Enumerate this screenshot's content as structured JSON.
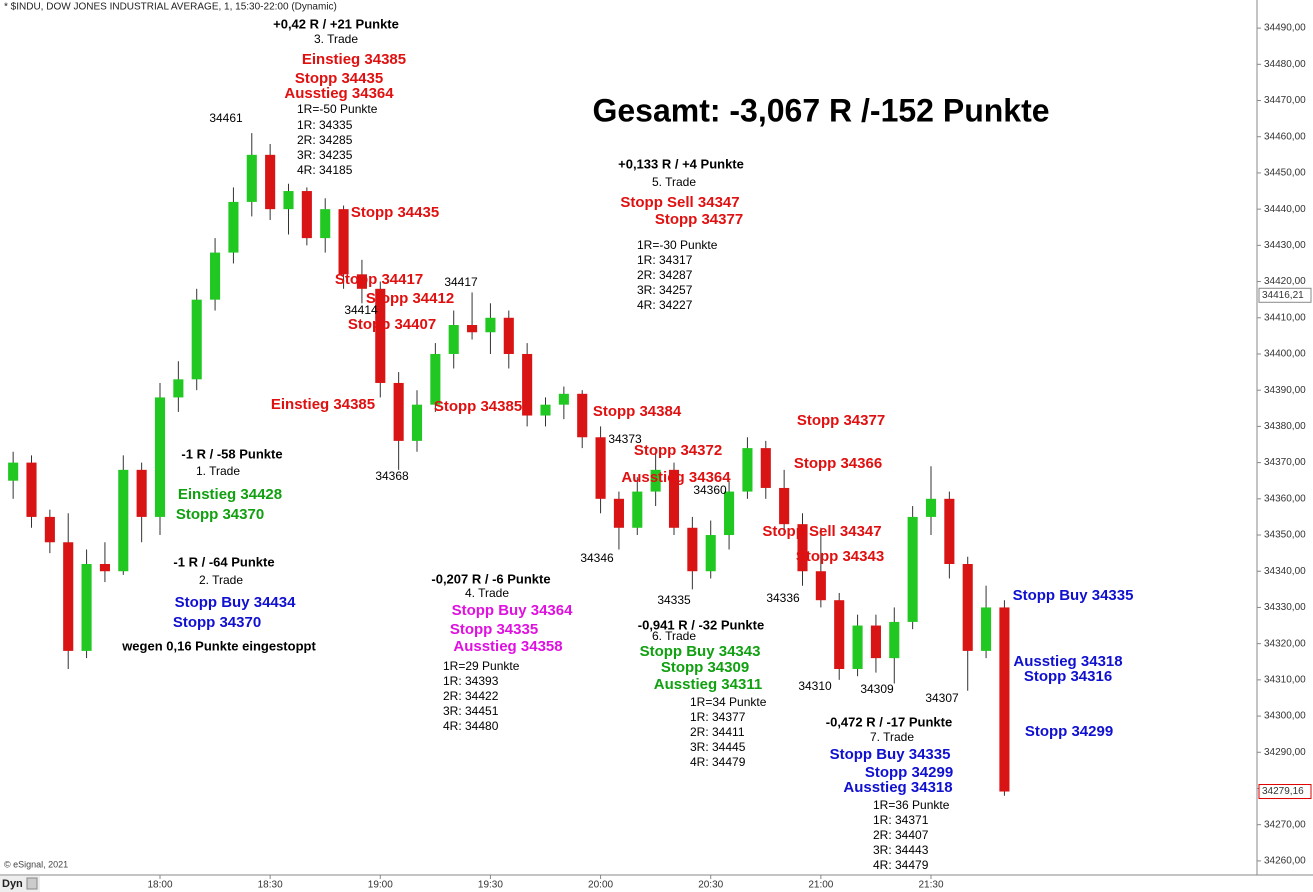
{
  "chart_data": {
    "type": "candlestick",
    "title": "* $INDU, DOW JONES INDUSTRIAL AVERAGE, 1, 15:30-22:00 (Dynamic)",
    "copyright": "© eSignal, 2021",
    "button": "Dyn",
    "up_color": "#22c822",
    "down_color": "#d81414",
    "x": [
      "17:20",
      "17:25",
      "17:30",
      "17:35",
      "17:40",
      "17:45",
      "17:50",
      "17:55",
      "18:00",
      "18:05",
      "18:10",
      "18:15",
      "18:20",
      "18:25",
      "18:30",
      "18:35",
      "18:40",
      "18:45",
      "18:50",
      "18:55",
      "19:00",
      "19:05",
      "19:10",
      "19:15",
      "19:20",
      "19:25",
      "19:30",
      "19:35",
      "19:40",
      "19:45",
      "19:50",
      "19:55",
      "20:00",
      "20:05",
      "20:10",
      "20:15",
      "20:20",
      "20:25",
      "20:30",
      "20:35",
      "20:40",
      "20:45",
      "20:50",
      "20:55",
      "21:00",
      "21:05",
      "21:10",
      "21:15",
      "21:20",
      "21:25",
      "21:30",
      "21:35",
      "21:40",
      "21:45",
      "21:50"
    ],
    "open": [
      34365,
      34370,
      34355,
      34348,
      34318,
      34342,
      34340,
      34368,
      34355,
      34388,
      34393,
      34415,
      34428,
      34442,
      34455,
      34440,
      34445,
      34432,
      34440,
      34422,
      34418,
      34392,
      34376,
      34386,
      34400,
      34408,
      34406,
      34410,
      34400,
      34383,
      34386,
      34389,
      34377,
      34360,
      34352,
      34362,
      34368,
      34352,
      34340,
      34350,
      34362,
      34374,
      34363,
      34353,
      34340,
      34332,
      34313,
      34325,
      34316,
      34326,
      34355,
      34360,
      34342,
      34318,
      34330
    ],
    "high": [
      34373,
      34372,
      34357,
      34356,
      34346,
      34348,
      34372,
      34370,
      34392,
      34398,
      34418,
      34432,
      34446,
      34461,
      34458,
      34447,
      34446,
      34443,
      34441,
      34426,
      34420,
      34395,
      34390,
      34403,
      34412,
      34417,
      34414,
      34412,
      34403,
      34388,
      34391,
      34390,
      34380,
      34362,
      34366,
      34373,
      34370,
      34355,
      34354,
      34365,
      34377,
      34376,
      34368,
      34356,
      34352,
      34334,
      34328,
      34328,
      34330,
      34358,
      34369,
      34362,
      34344,
      34336,
      34332
    ],
    "low": [
      34360,
      34352,
      34345,
      34313,
      34316,
      34337,
      34339,
      34348,
      34350,
      34384,
      34390,
      34412,
      34425,
      34438,
      34437,
      34433,
      34430,
      34428,
      34418,
      34414,
      34388,
      34368,
      34373,
      34384,
      34396,
      34404,
      34400,
      34396,
      34380,
      34380,
      34382,
      34374,
      34356,
      34346,
      34350,
      34358,
      34350,
      34335,
      34338,
      34346,
      34360,
      34360,
      34350,
      34336,
      34330,
      34310,
      34311,
      34312,
      34309,
      34324,
      34350,
      34338,
      34307,
      34316,
      34278
    ],
    "close": [
      34370,
      34355,
      34348,
      34318,
      34342,
      34340,
      34368,
      34355,
      34388,
      34393,
      34415,
      34428,
      34442,
      34455,
      34440,
      34445,
      34432,
      34440,
      34422,
      34418,
      34392,
      34376,
      34386,
      34400,
      34408,
      34406,
      34410,
      34400,
      34383,
      34386,
      34389,
      34377,
      34360,
      34352,
      34362,
      34368,
      34352,
      34340,
      34350,
      34362,
      34374,
      34363,
      34353,
      34340,
      34332,
      34313,
      34325,
      34316,
      34326,
      34355,
      34360,
      34342,
      34318,
      34330,
      34279.16
    ],
    "ylim": [
      34255,
      34495
    ],
    "yticks": [
      {
        "value": 34260,
        "label": "34260,00"
      },
      {
        "value": 34270,
        "label": "34270,00"
      },
      {
        "value": 34280,
        "label": "34280,00"
      },
      {
        "value": 34290,
        "label": "34290,00"
      },
      {
        "value": 34300,
        "label": "34300,00"
      },
      {
        "value": 34310,
        "label": "34310,00"
      },
      {
        "value": 34320,
        "label": "34320,00"
      },
      {
        "value": 34330,
        "label": "34330,00"
      },
      {
        "value": 34340,
        "label": "34340,00"
      },
      {
        "value": 34350,
        "label": "34350,00"
      },
      {
        "value": 34360,
        "label": "34360,00"
      },
      {
        "value": 34370,
        "label": "34370,00"
      },
      {
        "value": 34380,
        "label": "34380,00"
      },
      {
        "value": 34390,
        "label": "34390,00"
      },
      {
        "value": 34400,
        "label": "34400,00"
      },
      {
        "value": 34410,
        "label": "34410,00"
      },
      {
        "value": 34420,
        "label": "34420,00"
      },
      {
        "value": 34430,
        "label": "34430,00"
      },
      {
        "value": 34440,
        "label": "34440,00"
      },
      {
        "value": 34450,
        "label": "34450,00"
      },
      {
        "value": 34460,
        "label": "34460,00"
      },
      {
        "value": 34470,
        "label": "34470,00"
      },
      {
        "value": 34480,
        "label": "34480,00"
      },
      {
        "value": 34490,
        "label": "34490,00"
      }
    ],
    "xticks": [
      "18:00",
      "18:30",
      "19:00",
      "19:30",
      "20:00",
      "20:30",
      "21:00",
      "21:30"
    ],
    "price_labels": [
      {
        "value": 34416.21,
        "label": "34416,21",
        "color": "#888888"
      },
      {
        "value": 34279.16,
        "label": "34279,16",
        "color": "#e00000"
      }
    ],
    "annotations": [
      {
        "text": "+0,42 R / +21 Punkte",
        "color": "#000000"
      },
      {
        "text": "3. Trade",
        "color": "#000000"
      },
      {
        "text": "Einstieg 34385",
        "color": "#e01010"
      },
      {
        "text": "Stopp 34435",
        "color": "#e01010"
      },
      {
        "text": "Ausstieg 34364",
        "color": "#e01010"
      },
      {
        "text": "1R=-50 Punkte",
        "color": "#000000"
      },
      {
        "text": "1R: 34335",
        "color": "#000000"
      },
      {
        "text": "2R: 34285",
        "color": "#000000"
      },
      {
        "text": "3R: 34235",
        "color": "#000000"
      },
      {
        "text": "4R: 34185",
        "color": "#000000"
      },
      {
        "text": "34461",
        "color": "#000000"
      },
      {
        "text": "Gesamt: -3,067 R /-152 Punkte",
        "color": "#000000"
      },
      {
        "text": "+0,133 R / +4 Punkte",
        "color": "#000000"
      },
      {
        "text": "5. Trade",
        "color": "#000000"
      },
      {
        "text": "Stopp Sell 34347",
        "color": "#e01010"
      },
      {
        "text": "Stopp 34377",
        "color": "#e01010"
      },
      {
        "text": "1R=-30 Punkte",
        "color": "#000000"
      },
      {
        "text": "1R: 34317",
        "color": "#000000"
      },
      {
        "text": "2R: 34287",
        "color": "#000000"
      },
      {
        "text": "3R: 34257",
        "color": "#000000"
      },
      {
        "text": "4R: 34227",
        "color": "#000000"
      },
      {
        "text": "Stopp 34435",
        "color": "#e01010"
      },
      {
        "text": "Stopp 34417",
        "color": "#e01010"
      },
      {
        "text": "34417",
        "color": "#000000"
      },
      {
        "text": "Stopp 34412",
        "color": "#e01010"
      },
      {
        "text": "34414",
        "color": "#000000"
      },
      {
        "text": "Stopp 34407",
        "color": "#e01010"
      },
      {
        "text": "Einstieg 34385",
        "color": "#e01010"
      },
      {
        "text": "Stopp 34385",
        "color": "#e01010"
      },
      {
        "text": "34368",
        "color": "#000000"
      },
      {
        "text": "Stopp 34384",
        "color": "#e01010"
      },
      {
        "text": "34373",
        "color": "#000000"
      },
      {
        "text": "Stopp 34372",
        "color": "#e01010"
      },
      {
        "text": "Ausstieg 34364",
        "color": "#e01010"
      },
      {
        "text": "34360",
        "color": "#000000"
      },
      {
        "text": "Stopp 34377",
        "color": "#e01010"
      },
      {
        "text": "Stopp 34366",
        "color": "#e01010"
      },
      {
        "text": "Stopp Sell 34347",
        "color": "#e01010"
      },
      {
        "text": "Stopp 34343",
        "color": "#e01010"
      },
      {
        "text": "34346",
        "color": "#000000"
      },
      {
        "text": "34335",
        "color": "#000000"
      },
      {
        "text": "34336",
        "color": "#000000"
      },
      {
        "text": "-1 R / -58 Punkte",
        "color": "#000000"
      },
      {
        "text": "1. Trade",
        "color": "#000000"
      },
      {
        "text": "Einstieg 34428",
        "color": "#10a010"
      },
      {
        "text": "Stopp 34370",
        "color": "#10a010"
      },
      {
        "text": "-1 R / -64 Punkte",
        "color": "#000000"
      },
      {
        "text": "2. Trade",
        "color": "#000000"
      },
      {
        "text": "Stopp Buy 34434",
        "color": "#1010d0"
      },
      {
        "text": "Stopp 34370",
        "color": "#1010d0"
      },
      {
        "text": "wegen 0,16 Punkte eingestoppt",
        "color": "#000000"
      },
      {
        "text": "-0,207 R / -6 Punkte",
        "color": "#000000"
      },
      {
        "text": "4. Trade",
        "color": "#000000"
      },
      {
        "text": "Stopp Buy 34364",
        "color": "#e010e0"
      },
      {
        "text": "Stopp 34335",
        "color": "#e010e0"
      },
      {
        "text": "Ausstieg 34358",
        "color": "#e010e0"
      },
      {
        "text": "1R=29 Punkte",
        "color": "#000000"
      },
      {
        "text": "1R: 34393",
        "color": "#000000"
      },
      {
        "text": "2R: 34422",
        "color": "#000000"
      },
      {
        "text": "3R: 34451",
        "color": "#000000"
      },
      {
        "text": "4R: 34480",
        "color": "#000000"
      },
      {
        "text": "-0,941 R / -32 Punkte",
        "color": "#000000"
      },
      {
        "text": "6. Trade",
        "color": "#000000"
      },
      {
        "text": "Stopp Buy 34343",
        "color": "#10a010"
      },
      {
        "text": "Stopp 34309",
        "color": "#10a010"
      },
      {
        "text": "Ausstieg 34311",
        "color": "#10a010"
      },
      {
        "text": "1R=34 Punkte",
        "color": "#000000"
      },
      {
        "text": "1R: 34377",
        "color": "#000000"
      },
      {
        "text": "2R: 34411",
        "color": "#000000"
      },
      {
        "text": "3R: 34445",
        "color": "#000000"
      },
      {
        "text": "4R: 34479",
        "color": "#000000"
      },
      {
        "text": "34310",
        "color": "#000000"
      },
      {
        "text": "34309",
        "color": "#000000"
      },
      {
        "text": "34307",
        "color": "#000000"
      },
      {
        "text": "Stopp Buy 34335",
        "color": "#1010d0"
      },
      {
        "text": "Ausstieg 34318",
        "color": "#1010d0"
      },
      {
        "text": "Stopp 34316",
        "color": "#1010d0"
      },
      {
        "text": "Stopp 34299",
        "color": "#1010d0"
      },
      {
        "text": "-0,472 R / -17 Punkte",
        "color": "#000000"
      },
      {
        "text": "7. Trade",
        "color": "#000000"
      },
      {
        "text": "Stopp Buy 34335",
        "color": "#1010d0"
      },
      {
        "text": "Stopp 34299",
        "color": "#1010d0"
      },
      {
        "text": "Ausstieg 34318",
        "color": "#1010d0"
      },
      {
        "text": "1R=36 Punkte",
        "color": "#000000"
      },
      {
        "text": "1R: 34371",
        "color": "#000000"
      },
      {
        "text": "2R: 34407",
        "color": "#000000"
      },
      {
        "text": "3R: 34443",
        "color": "#000000"
      },
      {
        "text": "4R: 34479",
        "color": "#000000"
      }
    ]
  }
}
